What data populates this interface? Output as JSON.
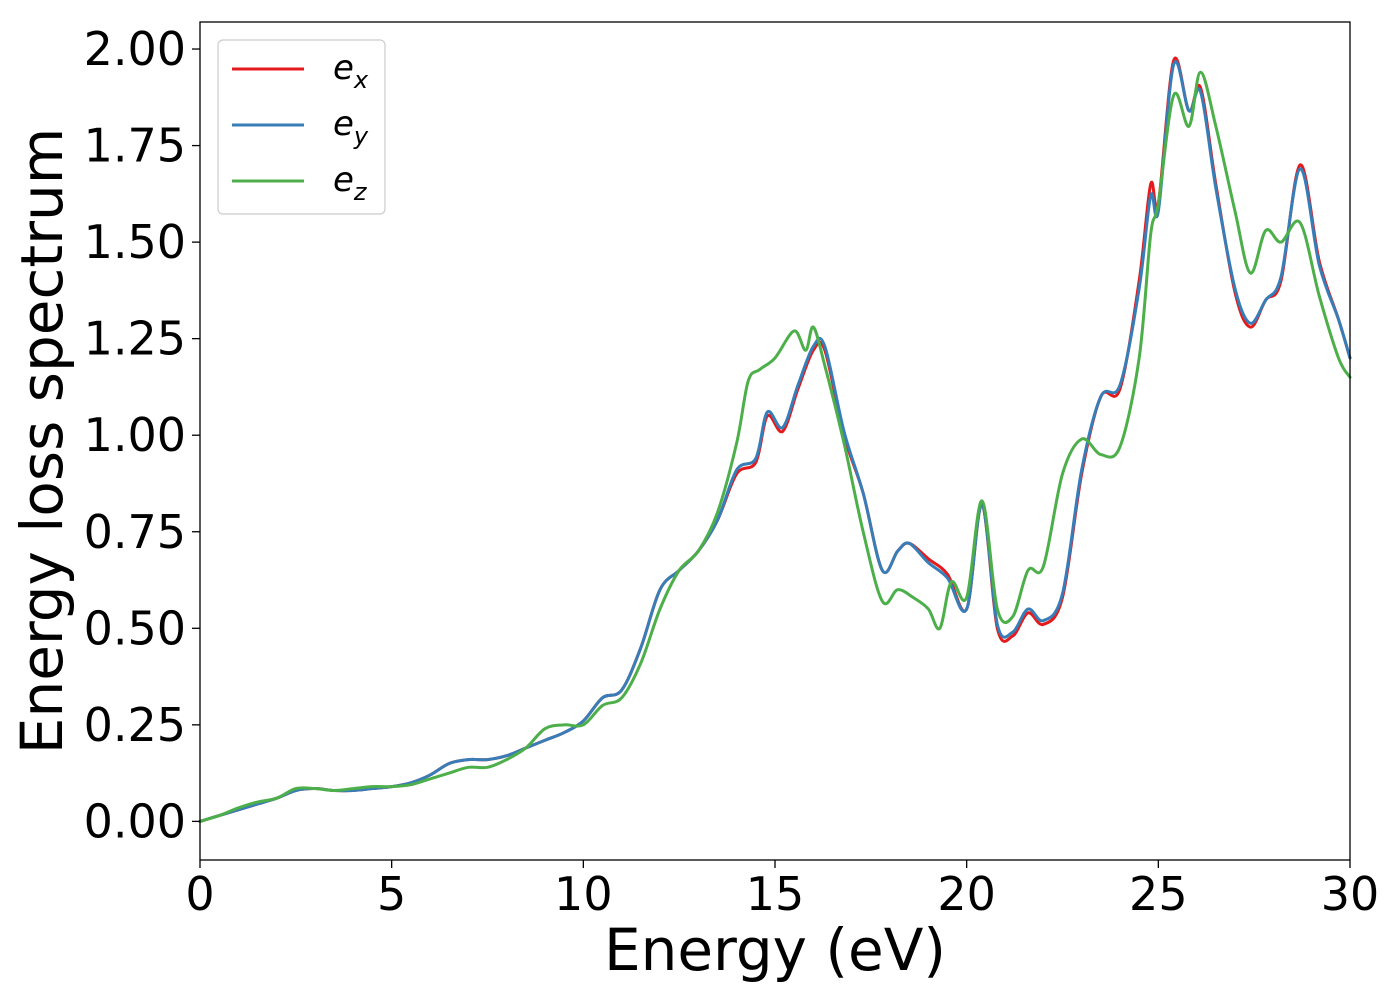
{
  "chart_data": {
    "type": "line",
    "xlabel": "Energy (eV)",
    "ylabel": "Energy loss spectrum",
    "xlim": [
      0,
      30
    ],
    "ylim": [
      -0.1,
      2.07
    ],
    "xticks": [
      "0",
      "5",
      "10",
      "15",
      "20",
      "25",
      "30"
    ],
    "yticks": [
      "0.00",
      "0.25",
      "0.50",
      "0.75",
      "1.00",
      "1.25",
      "1.50",
      "1.75",
      "2.00"
    ],
    "legend_position": "upper-left",
    "grid": false,
    "series": [
      {
        "name": "e_x",
        "label_base": "e",
        "label_sub": "x",
        "color": "#e41a1c",
        "x": [
          0,
          0.5,
          1,
          1.5,
          2,
          2.5,
          3,
          3.5,
          4,
          4.5,
          5,
          5.5,
          6,
          6.5,
          7,
          7.5,
          8,
          8.5,
          9,
          9.5,
          10,
          10.5,
          11,
          11.5,
          12,
          12.5,
          13,
          13.5,
          14,
          14.5,
          14.8,
          15.2,
          15.6,
          16,
          16.3,
          16.8,
          17.3,
          17.8,
          18.2,
          18.5,
          19,
          19.5,
          20,
          20.4,
          20.8,
          21.2,
          21.6,
          22,
          22.5,
          23,
          23.5,
          24,
          24.5,
          24.8,
          25,
          25.4,
          25.8,
          26.1,
          26.5,
          27,
          27.4,
          27.8,
          28.2,
          28.7,
          29.2,
          29.7,
          30
        ],
        "y": [
          0,
          0.015,
          0.03,
          0.045,
          0.06,
          0.08,
          0.085,
          0.08,
          0.08,
          0.085,
          0.09,
          0.1,
          0.12,
          0.15,
          0.16,
          0.16,
          0.17,
          0.19,
          0.21,
          0.23,
          0.26,
          0.32,
          0.34,
          0.45,
          0.6,
          0.65,
          0.7,
          0.78,
          0.9,
          0.93,
          1.05,
          1.01,
          1.12,
          1.22,
          1.22,
          1.0,
          0.85,
          0.65,
          0.7,
          0.72,
          0.68,
          0.64,
          0.55,
          0.82,
          0.5,
          0.48,
          0.54,
          0.51,
          0.58,
          0.9,
          1.1,
          1.12,
          1.4,
          1.65,
          1.6,
          1.97,
          1.84,
          1.9,
          1.65,
          1.37,
          1.28,
          1.35,
          1.4,
          1.7,
          1.45,
          1.3,
          1.2
        ]
      },
      {
        "name": "e_y",
        "label_base": "e",
        "label_sub": "y",
        "color": "#377eb8",
        "x": [
          0,
          0.5,
          1,
          1.5,
          2,
          2.5,
          3,
          3.5,
          4,
          4.5,
          5,
          5.5,
          6,
          6.5,
          7,
          7.5,
          8,
          8.5,
          9,
          9.5,
          10,
          10.5,
          11,
          11.5,
          12,
          12.5,
          13,
          13.5,
          14,
          14.5,
          14.8,
          15.2,
          15.6,
          16,
          16.3,
          16.8,
          17.3,
          17.8,
          18.2,
          18.5,
          19,
          19.5,
          20,
          20.4,
          20.8,
          21.2,
          21.6,
          22,
          22.5,
          23,
          23.5,
          24,
          24.5,
          24.8,
          25,
          25.4,
          25.8,
          26.1,
          26.5,
          27,
          27.4,
          27.8,
          28.2,
          28.7,
          29.2,
          29.7,
          30
        ],
        "y": [
          0,
          0.015,
          0.03,
          0.045,
          0.06,
          0.08,
          0.085,
          0.08,
          0.08,
          0.085,
          0.09,
          0.1,
          0.12,
          0.15,
          0.16,
          0.16,
          0.17,
          0.19,
          0.21,
          0.23,
          0.26,
          0.32,
          0.34,
          0.45,
          0.6,
          0.65,
          0.7,
          0.78,
          0.91,
          0.94,
          1.06,
          1.02,
          1.13,
          1.23,
          1.23,
          1.01,
          0.85,
          0.65,
          0.7,
          0.72,
          0.67,
          0.63,
          0.55,
          0.82,
          0.51,
          0.49,
          0.55,
          0.52,
          0.59,
          0.91,
          1.1,
          1.13,
          1.38,
          1.62,
          1.58,
          1.96,
          1.84,
          1.89,
          1.64,
          1.38,
          1.29,
          1.35,
          1.41,
          1.69,
          1.44,
          1.3,
          1.2
        ]
      },
      {
        "name": "e_z",
        "label_base": "e",
        "label_sub": "z",
        "color": "#4daf4a",
        "x": [
          0,
          0.5,
          1,
          1.5,
          2,
          2.5,
          3,
          3.5,
          4,
          4.5,
          5,
          5.5,
          6,
          6.5,
          7,
          7.5,
          8,
          8.5,
          9,
          9.5,
          10,
          10.5,
          11,
          11.5,
          12,
          12.5,
          13,
          13.5,
          14,
          14.3,
          14.6,
          15,
          15.5,
          15.8,
          16,
          16.3,
          16.8,
          17.3,
          17.8,
          18.2,
          18.6,
          19,
          19.3,
          19.6,
          20,
          20.4,
          20.8,
          21.2,
          21.6,
          22,
          22.5,
          23,
          23.5,
          24,
          24.5,
          24.8,
          25,
          25.4,
          25.8,
          26.1,
          26.5,
          27,
          27.4,
          27.8,
          28.2,
          28.7,
          29.2,
          29.7,
          30
        ],
        "y": [
          0,
          0.015,
          0.035,
          0.05,
          0.06,
          0.085,
          0.085,
          0.08,
          0.085,
          0.09,
          0.09,
          0.095,
          0.11,
          0.125,
          0.14,
          0.14,
          0.16,
          0.19,
          0.24,
          0.25,
          0.25,
          0.3,
          0.32,
          0.41,
          0.55,
          0.65,
          0.7,
          0.8,
          0.98,
          1.14,
          1.17,
          1.2,
          1.27,
          1.22,
          1.28,
          1.18,
          0.98,
          0.75,
          0.57,
          0.6,
          0.58,
          0.55,
          0.5,
          0.62,
          0.58,
          0.83,
          0.55,
          0.53,
          0.65,
          0.66,
          0.9,
          0.99,
          0.95,
          0.97,
          1.2,
          1.52,
          1.6,
          1.88,
          1.8,
          1.94,
          1.8,
          1.58,
          1.42,
          1.53,
          1.5,
          1.55,
          1.36,
          1.2,
          1.15
        ]
      }
    ]
  }
}
